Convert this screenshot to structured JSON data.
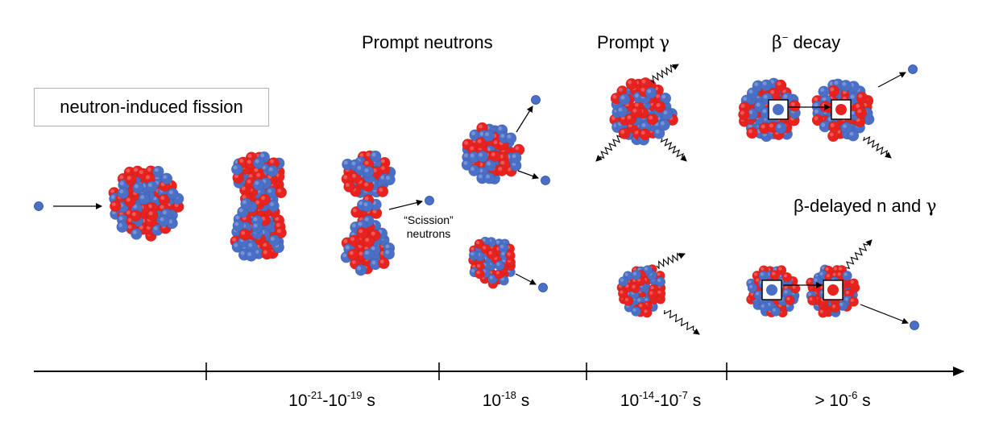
{
  "title": "neutron-induced fission",
  "stage_labels": {
    "prompt_neutrons": "Prompt neutrons",
    "prompt_gamma": "Prompt",
    "prompt_gamma_symbol": "γ",
    "beta_decay_symbol": "β",
    "beta_decay_sup": "−",
    "beta_decay_text": "decay",
    "beta_delayed": "β-delayed n and",
    "beta_delayed_symbol": "γ"
  },
  "scission_label": {
    "line1": "“Scission”",
    "line2": "neutrons"
  },
  "timeline": {
    "ticks": [
      {
        "pre": "10",
        "sup1": "-21",
        "mid": "-10",
        "sup2": "-19",
        "post": " s"
      },
      {
        "pre": "10",
        "sup1": "-18",
        "mid": "",
        "sup2": "",
        "post": " s"
      },
      {
        "pre": "10",
        "sup1": "-14",
        "mid": "-10",
        "sup2": "-7",
        "post": " s"
      },
      {
        "pre": "> 10",
        "sup1": "-6",
        "mid": "",
        "sup2": "",
        "post": " s"
      }
    ]
  },
  "colors": {
    "proton": "#e8231f",
    "neutron": "#4a6fc7",
    "axis": "#000000"
  }
}
